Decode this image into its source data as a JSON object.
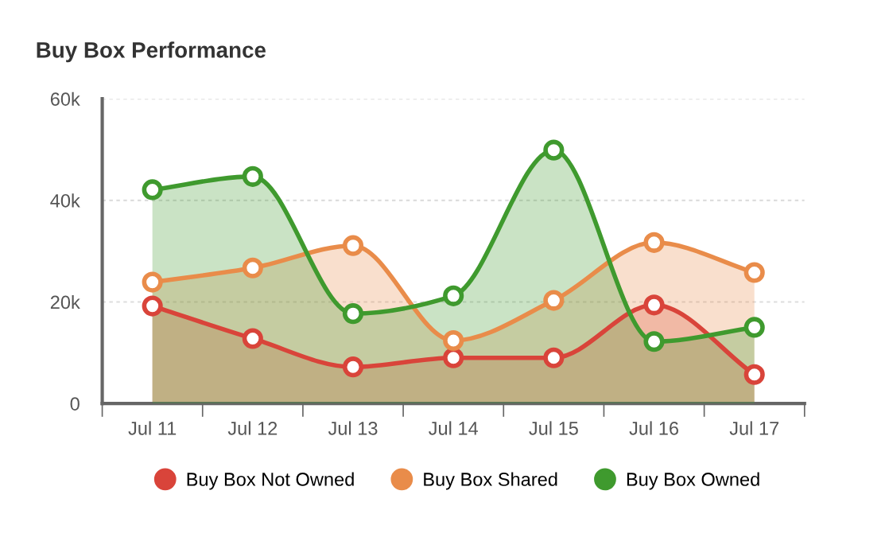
{
  "chart_data": {
    "type": "area",
    "title": "Buy Box Performance",
    "categories": [
      "Jul 11",
      "Jul 12",
      "Jul 13",
      "Jul 14",
      "Jul 15",
      "Jul 16",
      "Jul 17"
    ],
    "series": [
      {
        "name": "Buy Box Not Owned",
        "color": "#d9443a",
        "values": [
          19200,
          12800,
          7200,
          9000,
          9000,
          19400,
          5700
        ]
      },
      {
        "name": "Buy Box Shared",
        "color": "#e98c4a",
        "values": [
          23900,
          26700,
          31100,
          12400,
          20300,
          31700,
          25800
        ]
      },
      {
        "name": "Buy Box Owned",
        "color": "#3f9a2e",
        "values": [
          42100,
          44700,
          17700,
          21200,
          49900,
          12200,
          15000
        ]
      }
    ],
    "ylim": [
      0,
      60000
    ],
    "yticks": [
      {
        "value": 0,
        "label": "0"
      },
      {
        "value": 20000,
        "label": "20k"
      },
      {
        "value": 40000,
        "label": "40k"
      },
      {
        "value": 60000,
        "label": "60k"
      }
    ],
    "grid": "y",
    "legend": "bottom",
    "marker": "circle"
  }
}
